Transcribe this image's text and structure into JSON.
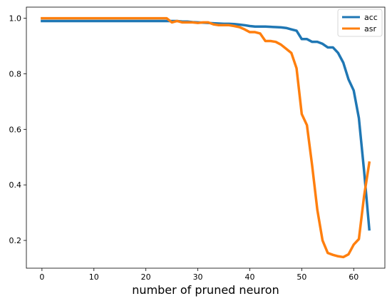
{
  "chart_data": {
    "type": "line",
    "title": "",
    "xlabel": "number of pruned neuron",
    "ylabel": "",
    "xlim": [
      -3,
      66
    ],
    "ylim": [
      0.1,
      1.04
    ],
    "xticks": [
      0,
      10,
      20,
      30,
      40,
      50,
      60
    ],
    "yticks": [
      0.2,
      0.4,
      0.6,
      0.8,
      1.0
    ],
    "xtick_labels": [
      "0",
      "10",
      "20",
      "30",
      "40",
      "50",
      "60"
    ],
    "ytick_labels": [
      "0.2",
      "0.4",
      "0.6",
      "0.8",
      "1.0"
    ],
    "grid": false,
    "legend_position": "top-right",
    "series": [
      {
        "name": "acc",
        "color": "#1f77b4",
        "x": [
          0,
          1,
          2,
          3,
          4,
          5,
          6,
          7,
          8,
          9,
          10,
          11,
          12,
          13,
          14,
          15,
          16,
          17,
          18,
          19,
          20,
          21,
          22,
          23,
          24,
          25,
          26,
          27,
          28,
          29,
          30,
          31,
          32,
          33,
          34,
          35,
          36,
          37,
          38,
          39,
          40,
          41,
          42,
          43,
          44,
          45,
          46,
          47,
          48,
          49,
          50,
          51,
          52,
          53,
          54,
          55,
          56,
          57,
          58,
          59,
          60,
          61,
          62,
          63
        ],
        "y": [
          0.99,
          0.99,
          0.99,
          0.99,
          0.99,
          0.99,
          0.99,
          0.99,
          0.99,
          0.99,
          0.99,
          0.99,
          0.99,
          0.99,
          0.99,
          0.99,
          0.99,
          0.99,
          0.99,
          0.99,
          0.99,
          0.99,
          0.99,
          0.99,
          0.99,
          0.99,
          0.99,
          0.988,
          0.988,
          0.986,
          0.985,
          0.984,
          0.983,
          0.982,
          0.981,
          0.98,
          0.98,
          0.979,
          0.977,
          0.975,
          0.972,
          0.97,
          0.97,
          0.97,
          0.969,
          0.968,
          0.967,
          0.965,
          0.96,
          0.955,
          0.925,
          0.925,
          0.915,
          0.915,
          0.908,
          0.895,
          0.895,
          0.875,
          0.84,
          0.78,
          0.74,
          0.64,
          0.45,
          0.24
        ]
      },
      {
        "name": "asr",
        "color": "#ff7f0e",
        "x": [
          0,
          1,
          2,
          3,
          4,
          5,
          6,
          7,
          8,
          9,
          10,
          11,
          12,
          13,
          14,
          15,
          16,
          17,
          18,
          19,
          20,
          21,
          22,
          23,
          24,
          25,
          26,
          27,
          28,
          29,
          30,
          31,
          32,
          33,
          34,
          35,
          36,
          37,
          38,
          39,
          40,
          41,
          42,
          43,
          44,
          45,
          46,
          47,
          48,
          49,
          50,
          51,
          52,
          53,
          54,
          55,
          56,
          57,
          58,
          59,
          60,
          61,
          62,
          63
        ],
        "y": [
          1.0,
          1.0,
          1.0,
          1.0,
          1.0,
          1.0,
          1.0,
          1.0,
          1.0,
          1.0,
          1.0,
          1.0,
          1.0,
          1.0,
          1.0,
          1.0,
          1.0,
          1.0,
          1.0,
          1.0,
          1.0,
          1.0,
          1.0,
          1.0,
          1.0,
          0.985,
          0.99,
          0.985,
          0.985,
          0.985,
          0.983,
          0.985,
          0.985,
          0.978,
          0.975,
          0.975,
          0.975,
          0.972,
          0.968,
          0.96,
          0.95,
          0.95,
          0.945,
          0.918,
          0.918,
          0.915,
          0.905,
          0.89,
          0.875,
          0.82,
          0.655,
          0.615,
          0.47,
          0.31,
          0.2,
          0.155,
          0.148,
          0.143,
          0.14,
          0.15,
          0.185,
          0.205,
          0.36,
          0.48
        ]
      }
    ]
  }
}
